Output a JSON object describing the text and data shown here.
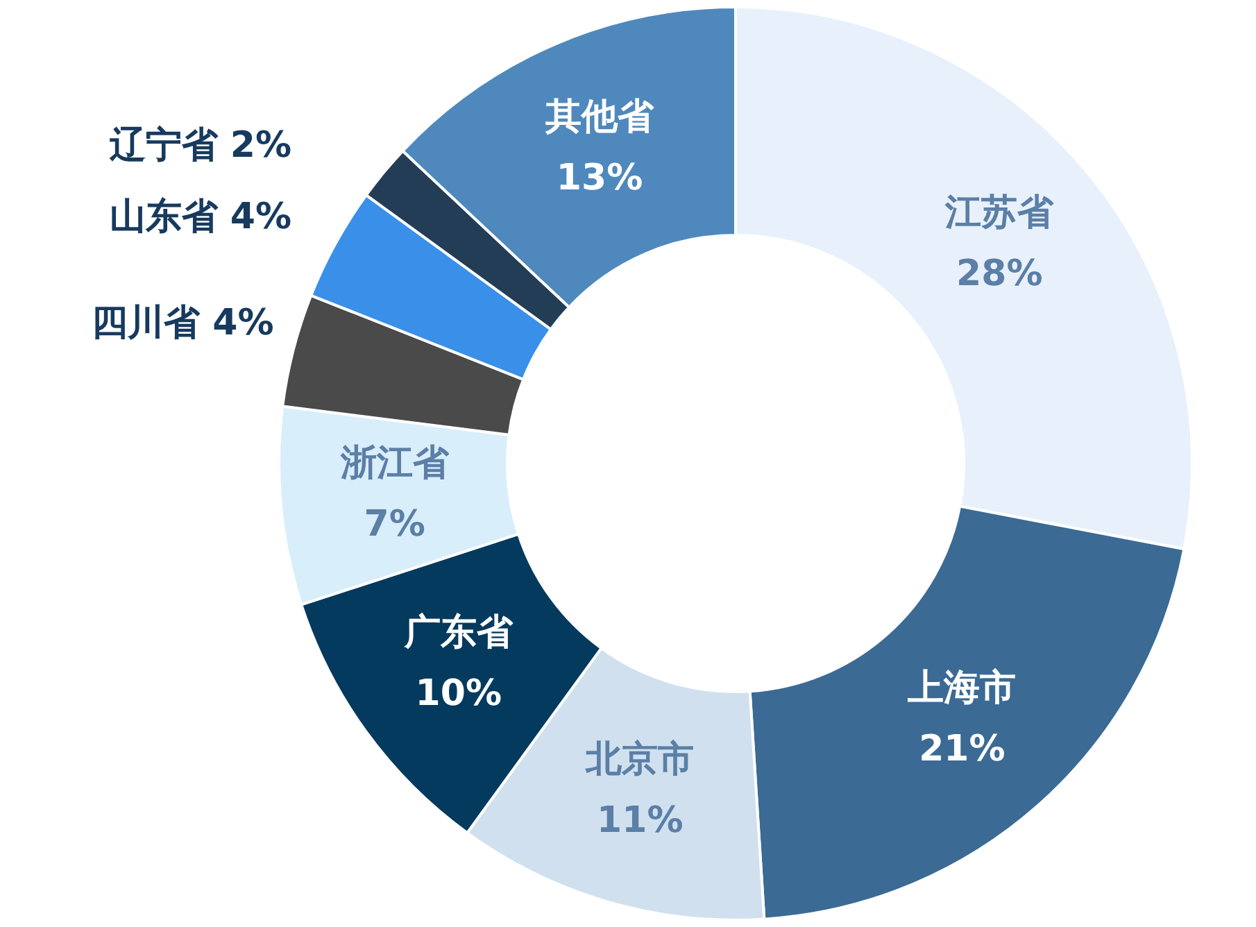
{
  "chart_data": {
    "type": "donut",
    "categories": [
      "江苏省",
      "上海市",
      "北京市",
      "广东省",
      "浙江省",
      "四川省",
      "山东省",
      "辽宁省",
      "其他省"
    ],
    "values": [
      28,
      21,
      11,
      10,
      7,
      4,
      4,
      2,
      13
    ],
    "value_labels": [
      "28%",
      "21%",
      "11%",
      "10%",
      "7%",
      "4%",
      "4%",
      "2%",
      "13%"
    ],
    "colors": [
      "#e8f1fb",
      "#3b6a94",
      "#d0e0ee",
      "#053a5f",
      "#d9eefb",
      "#4a4a4a",
      "#3a90e8",
      "#233d57",
      "#4f88bd"
    ],
    "legend": false
  }
}
